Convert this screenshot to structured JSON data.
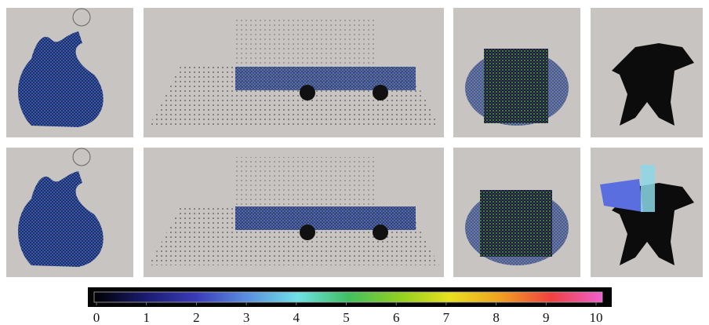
{
  "colorbar": {
    "range": [
      0,
      10
    ],
    "ticks": [
      0,
      1,
      2,
      3,
      4,
      5,
      6,
      7,
      8,
      9,
      10
    ]
  }
}
